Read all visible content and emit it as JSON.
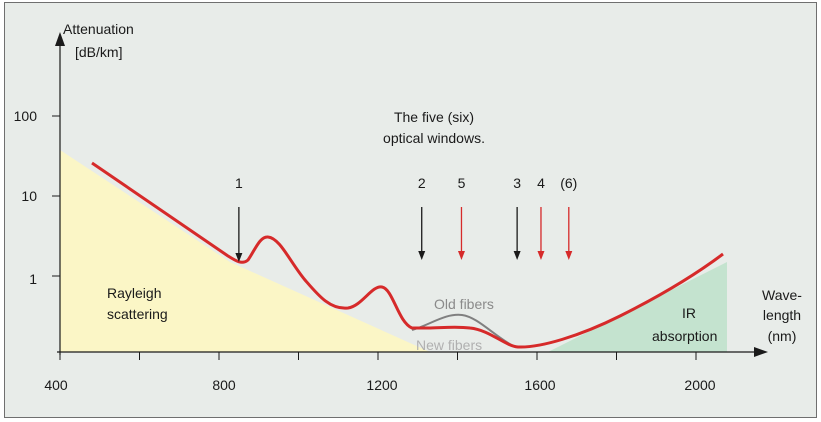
{
  "chart_data": {
    "type": "line",
    "title": "The five (six) optical windows.",
    "title_lines": [
      "The five (six)",
      "optical windows."
    ],
    "ylabel_lines": [
      "Attenuation",
      "[dB/km]"
    ],
    "xlabel_lines": [
      "Wave-",
      "length",
      "(nm)"
    ],
    "x_ticks": [
      400,
      600,
      800,
      1000,
      1200,
      1400,
      1600,
      1800,
      2000
    ],
    "x_tick_labels": [
      "400",
      "800",
      "1200",
      "1600",
      "2000"
    ],
    "y_ticks": [
      "1",
      "10",
      "100"
    ],
    "xlim": [
      400,
      2100
    ],
    "regions": [
      {
        "name": "rayleigh",
        "label_lines": [
          "Rayleigh",
          "scattering"
        ],
        "color": "#fbf6c6"
      },
      {
        "name": "ir",
        "label_lines": [
          "IR",
          "absorption"
        ],
        "color": "#c4e3cf"
      }
    ],
    "series": [
      {
        "name": "New fibers",
        "color": "#d62a2a",
        "x": [
          480,
          850,
          890,
          1130,
          1210,
          1300,
          1420,
          1560,
          1700,
          2070
        ],
        "y": [
          2.0,
          1.5,
          1.5,
          1.5,
          0.7,
          0.3,
          0.3,
          0.08,
          0.15,
          1.4
        ]
      },
      {
        "name": "Old fibers",
        "color": "#808080",
        "x": [
          1310,
          1420,
          1550
        ],
        "y": [
          0.3,
          0.5,
          0.1
        ]
      }
    ],
    "windows": [
      {
        "label": "1",
        "wavelength": 850,
        "color": "#1a1a1a"
      },
      {
        "label": "2",
        "wavelength": 1310,
        "color": "#1a1a1a"
      },
      {
        "label": "5",
        "wavelength": 1410,
        "color": "#d62a2a"
      },
      {
        "label": "3",
        "wavelength": 1550,
        "color": "#1a1a1a"
      },
      {
        "label": "4",
        "wavelength": 1610,
        "color": "#d62a2a"
      },
      {
        "label": "(6)",
        "wavelength": 1680,
        "color": "#d62a2a"
      }
    ]
  }
}
